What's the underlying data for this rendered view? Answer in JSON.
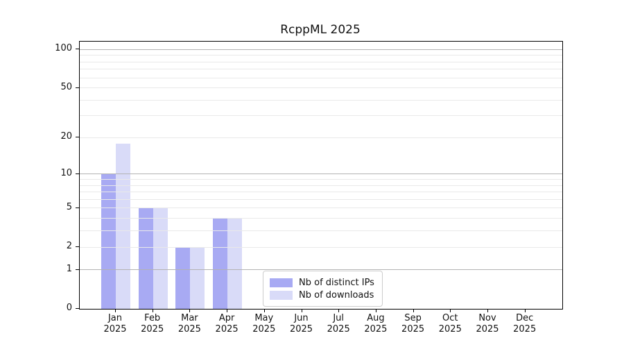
{
  "title": "RcppML 2025",
  "chart_data": {
    "type": "bar",
    "title": "RcppML 2025",
    "categories": [
      "Jan",
      "Feb",
      "Mar",
      "Apr",
      "May",
      "Jun",
      "Jul",
      "Aug",
      "Sep",
      "Oct",
      "Nov",
      "Dec"
    ],
    "category_year": "2025",
    "series": [
      {
        "name": "Nb of distinct IPs",
        "color": "#a8aaf3",
        "values": [
          10,
          5,
          2,
          4,
          0,
          0,
          0,
          0,
          0,
          0,
          0,
          0
        ]
      },
      {
        "name": "Nb of downloads",
        "color": "#d9dbf8",
        "values": [
          18,
          5,
          2,
          4,
          0,
          0,
          0,
          0,
          0,
          0,
          0,
          0
        ]
      }
    ],
    "yscale": "log1p",
    "yticks": [
      0,
      1,
      2,
      5,
      10,
      20,
      50,
      100
    ],
    "ylim": [
      0,
      115
    ],
    "xlabel": "",
    "ylabel": "",
    "grid": {
      "major_lines": [
        1,
        10,
        100
      ],
      "minor_lines": [
        2,
        3,
        4,
        5,
        6,
        7,
        8,
        9,
        20,
        30,
        40,
        50,
        60,
        70,
        80,
        90
      ],
      "major_color": "#b3b3b3",
      "minor_color": "#e9e9e9"
    },
    "legend_position": "lower center",
    "axis_color": "#000000"
  }
}
